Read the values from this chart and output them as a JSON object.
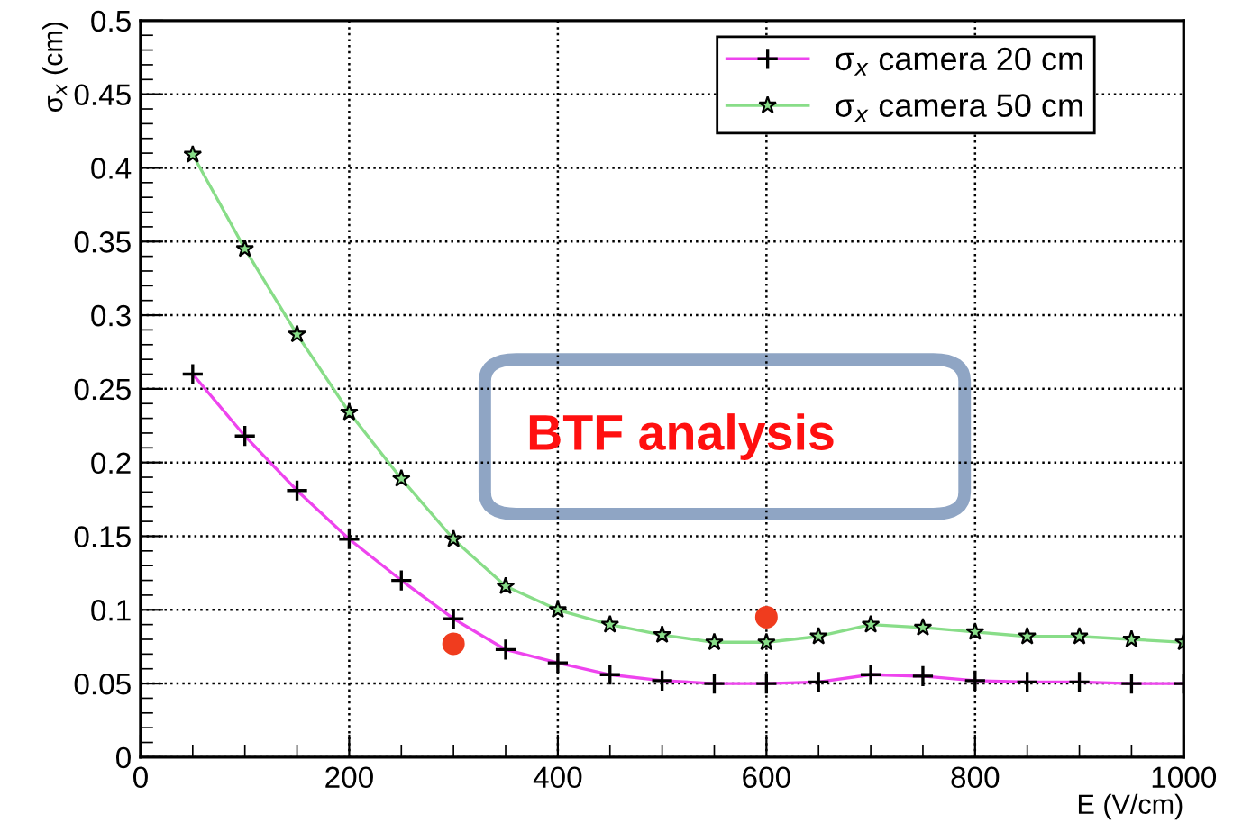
{
  "chart_data": {
    "type": "line",
    "xlabel": "E (V/cm)",
    "ylabel": "σ$_{x}$ (cm)",
    "x": [
      50,
      100,
      150,
      200,
      250,
      300,
      350,
      400,
      450,
      500,
      550,
      600,
      650,
      700,
      750,
      800,
      850,
      900,
      950,
      1000
    ],
    "series": [
      {
        "name": "σ$_{x}$ camera 20 cm",
        "color": "#ee44ee",
        "marker": "cross",
        "values": [
          0.26,
          0.218,
          0.181,
          0.148,
          0.12,
          0.094,
          0.073,
          0.064,
          0.056,
          0.052,
          0.05,
          0.05,
          0.051,
          0.056,
          0.055,
          0.052,
          0.051,
          0.051,
          0.05,
          0.05
        ]
      },
      {
        "name": "σ$_{x}$ camera 50 cm",
        "color": "#88dd88",
        "marker": "star",
        "values": [
          0.409,
          0.345,
          0.287,
          0.234,
          0.189,
          0.148,
          0.116,
          0.1,
          0.09,
          0.083,
          0.078,
          0.078,
          0.082,
          0.09,
          0.088,
          0.085,
          0.082,
          0.082,
          0.08,
          0.078
        ]
      },
      {
        "type": "scatter",
        "color": "#f03c1e",
        "marker": "circle",
        "x": [
          300,
          600
        ],
        "values": [
          0.077,
          0.095
        ]
      }
    ],
    "annotations": [
      "BTF analysis"
    ],
    "xlim": [
      0,
      1000
    ],
    "ylim": [
      0,
      0.5
    ],
    "xticks": [
      0,
      200,
      400,
      600,
      800,
      1000
    ],
    "yticks": [
      0,
      0.05,
      0.1,
      0.15,
      0.2,
      0.25,
      0.3,
      0.35,
      0.4,
      0.45,
      0.5
    ],
    "grid": true,
    "legend": "top right"
  }
}
